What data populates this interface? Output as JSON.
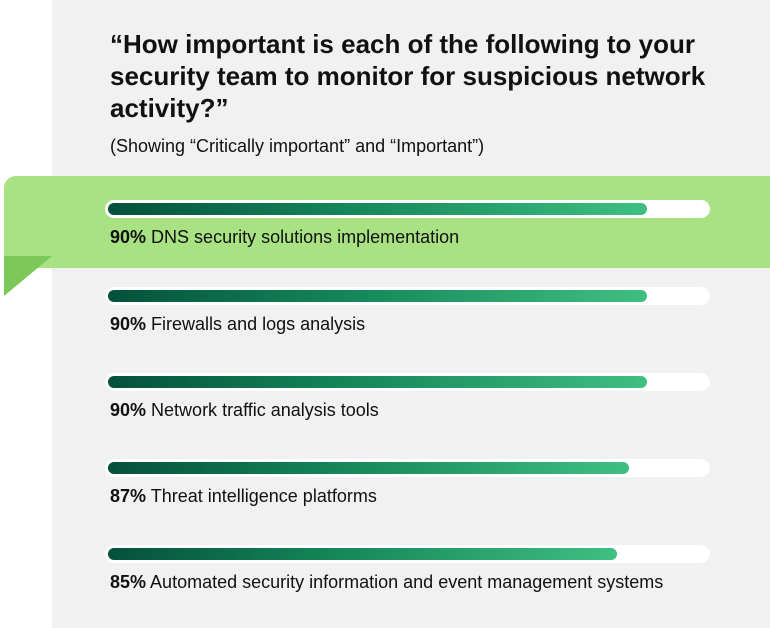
{
  "chart_data": {
    "type": "bar",
    "title": "“How important is each of the following to your security team to monitor for suspicious network activity?”",
    "subtitle": "(Showing “Critically important” and “Important”)",
    "xlim": [
      0,
      100
    ],
    "highlighted_index": 0,
    "colors": {
      "bar_start": "#04513b",
      "bar_end": "#3fbf81",
      "track": "#ffffff",
      "highlight": "#a8e283"
    },
    "items": [
      {
        "value": 90,
        "value_label": "90%",
        "label": "DNS security solutions implementation"
      },
      {
        "value": 90,
        "value_label": "90%",
        "label": "Firewalls and logs analysis"
      },
      {
        "value": 90,
        "value_label": "90%",
        "label": "Network traffic analysis tools"
      },
      {
        "value": 87,
        "value_label": "87%",
        "label": "Threat intelligence platforms"
      },
      {
        "value": 85,
        "value_label": "85%",
        "label": "Automated security information and event management systems"
      }
    ]
  }
}
